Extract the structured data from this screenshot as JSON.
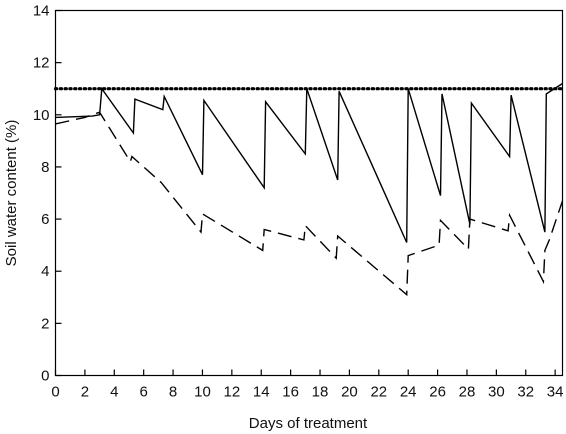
{
  "chart_data": {
    "type": "line",
    "xlabel": "Days of treatment",
    "ylabel": "Soil water content (%)",
    "xlim": [
      0,
      34.5
    ],
    "ylim": [
      0,
      14
    ],
    "xticks": [
      0,
      2,
      4,
      6,
      8,
      10,
      12,
      14,
      16,
      18,
      20,
      22,
      24,
      26,
      28,
      30,
      32,
      34
    ],
    "yticks": [
      0,
      2,
      4,
      6,
      8,
      10,
      12,
      14
    ],
    "grid": false,
    "legend": "none",
    "series": [
      {
        "style": "dotted",
        "color": "#000000",
        "points": [
          [
            0,
            11.0
          ],
          [
            34.5,
            11.0
          ]
        ]
      },
      {
        "style": "solid",
        "color": "#000000",
        "points": [
          [
            0,
            9.9
          ],
          [
            2.5,
            9.95
          ],
          [
            3.0,
            10.0
          ],
          [
            3.15,
            11.0
          ],
          [
            5.3,
            9.3
          ],
          [
            5.4,
            10.6
          ],
          [
            7.3,
            10.2
          ],
          [
            7.4,
            10.7
          ],
          [
            10.0,
            7.7
          ],
          [
            10.1,
            10.55
          ],
          [
            14.2,
            7.2
          ],
          [
            14.3,
            10.5
          ],
          [
            17.0,
            8.5
          ],
          [
            17.1,
            11.0
          ],
          [
            19.2,
            7.5
          ],
          [
            19.3,
            10.9
          ],
          [
            23.9,
            5.1
          ],
          [
            24.0,
            11.0
          ],
          [
            26.2,
            6.9
          ],
          [
            26.3,
            10.8
          ],
          [
            28.2,
            5.8
          ],
          [
            28.3,
            10.45
          ],
          [
            30.9,
            8.4
          ],
          [
            31.0,
            10.75
          ],
          [
            33.3,
            5.5
          ],
          [
            33.4,
            10.8
          ],
          [
            34.5,
            11.2
          ]
        ]
      },
      {
        "style": "dashed",
        "color": "#000000",
        "points": [
          [
            0,
            9.65
          ],
          [
            2.0,
            9.9
          ],
          [
            3.0,
            10.1
          ],
          [
            5.1,
            8.2
          ],
          [
            5.2,
            8.4
          ],
          [
            7.2,
            7.4
          ],
          [
            9.9,
            5.5
          ],
          [
            10.0,
            6.2
          ],
          [
            14.1,
            4.8
          ],
          [
            14.2,
            5.6
          ],
          [
            16.9,
            5.2
          ],
          [
            17.0,
            5.75
          ],
          [
            19.1,
            4.5
          ],
          [
            19.2,
            5.35
          ],
          [
            23.9,
            3.1
          ],
          [
            24.0,
            4.6
          ],
          [
            26.1,
            5.0
          ],
          [
            26.2,
            5.95
          ],
          [
            28.1,
            4.85
          ],
          [
            28.2,
            6.0
          ],
          [
            30.8,
            5.55
          ],
          [
            30.9,
            6.15
          ],
          [
            33.2,
            3.6
          ],
          [
            33.3,
            4.8
          ],
          [
            33.6,
            5.2
          ],
          [
            34.5,
            6.7
          ]
        ]
      }
    ]
  }
}
